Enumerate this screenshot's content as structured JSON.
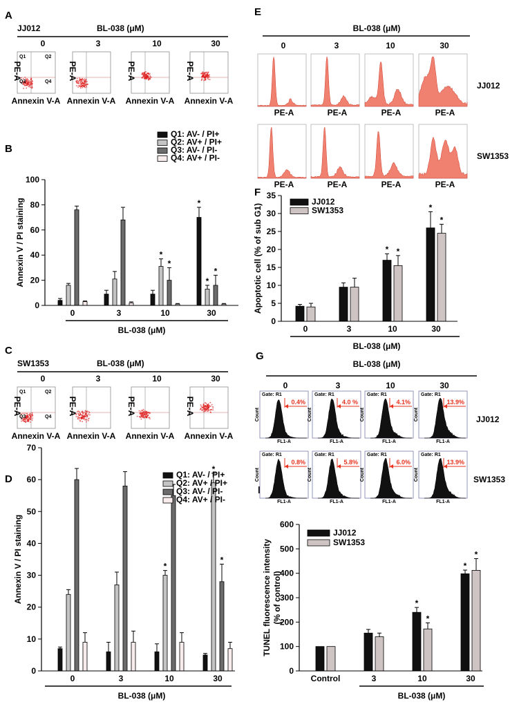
{
  "colors": {
    "q1": "#111111",
    "q2": "#c4c4c4",
    "q3": "#6b6b6b",
    "q4": "#f8ecec",
    "jj": "#101010",
    "sw": "#cfc4c4",
    "hist": "#f08070",
    "flow": "#e02020",
    "red": "#e8321e",
    "panel": "#7b7bb0"
  },
  "conc": [
    "0",
    "3",
    "10",
    "30"
  ],
  "conc_unit": "BL-038 (μM)",
  "scatter_xlabel": "Annexin V-A",
  "scatter_ylabel": "PE-A",
  "quadrants": [
    "Q1",
    "Q2",
    "Q3",
    "Q4"
  ],
  "panelA": {
    "label": "A",
    "cell": "JJ012"
  },
  "panelC": {
    "label": "C",
    "cell": "SW1353"
  },
  "panelE": {
    "label": "E",
    "rows": [
      "JJ012",
      "SW1353"
    ],
    "xlabel": "PE-A"
  },
  "panelG": {
    "label": "G",
    "rows": [
      "JJ012",
      "SW1353"
    ],
    "gate": "Gate: R1",
    "xaxis": "FL1-A",
    "yaxis": "Count",
    "pcts": [
      [
        "0.4%",
        "4.0 %",
        "4.1%",
        "13.9%"
      ],
      [
        "0.8%",
        "5.8%",
        "6.0%",
        "13.9%"
      ]
    ]
  },
  "chart_data": [
    {
      "id": "B",
      "label": "B",
      "type": "bar",
      "ylabel": "Annexin V / PI staining",
      "xlabel": "BL-038 (μM)",
      "ylim": [
        0,
        100
      ],
      "yticks": [
        0,
        20,
        40,
        60,
        80,
        100
      ],
      "categories": [
        "0",
        "3",
        "10",
        "30"
      ],
      "series": [
        {
          "name": "Q1: AV- / PI+",
          "values": [
            4,
            9,
            9,
            70
          ],
          "err": [
            1.5,
            3,
            3,
            8
          ],
          "star": [
            0,
            0,
            0,
            1
          ]
        },
        {
          "name": "Q2: AV+ / PI+",
          "values": [
            16,
            21,
            31,
            13
          ],
          "err": [
            1.5,
            6,
            6,
            3
          ],
          "star": [
            0,
            0,
            1,
            1
          ]
        },
        {
          "name": "Q3: AV- / PI-",
          "values": [
            76,
            68,
            20,
            16
          ],
          "err": [
            3,
            10,
            10,
            8
          ],
          "star": [
            0,
            0,
            1,
            1
          ]
        },
        {
          "name": "Q4: AV+ / PI-",
          "values": [
            3,
            2,
            1,
            1
          ],
          "err": [
            0.5,
            0.8,
            0.5,
            0.5
          ],
          "star": [
            0,
            0,
            0,
            0
          ]
        }
      ]
    },
    {
      "id": "D",
      "label": "D",
      "type": "bar",
      "ylabel": "Annexin V / PI staining",
      "xlabel": "BL-038 (μM)",
      "ylim": [
        0,
        70
      ],
      "yticks": [
        0,
        10,
        20,
        30,
        40,
        50,
        60,
        70
      ],
      "categories": [
        "0",
        "3",
        "10",
        "30"
      ],
      "series": [
        {
          "name": "Q1: AV- / PI+",
          "values": [
            7,
            6,
            6,
            5
          ],
          "err": [
            0.5,
            3,
            2.5,
            0.5
          ],
          "star": [
            0,
            0,
            0,
            0
          ]
        },
        {
          "name": "Q2: AV+ / PI+",
          "values": [
            24,
            27,
            30,
            59
          ],
          "err": [
            1.5,
            4,
            1.5,
            3
          ],
          "star": [
            0,
            0,
            1,
            1
          ]
        },
        {
          "name": "Q3: AV- / PI-",
          "values": [
            60,
            58,
            55,
            28
          ],
          "err": [
            3.5,
            4.5,
            3.5,
            5.5
          ],
          "star": [
            0,
            0,
            0,
            1
          ]
        },
        {
          "name": "Q4: AV+ / PI-",
          "values": [
            9,
            9,
            9,
            7
          ],
          "err": [
            3,
            3.5,
            3,
            2
          ],
          "star": [
            0,
            0,
            0,
            0
          ]
        }
      ]
    },
    {
      "id": "F",
      "label": "F",
      "type": "bar",
      "ylabel": "Apoptotic cell (% of sub G1)",
      "xlabel": "BL-038 (μM)",
      "ylim": [
        0,
        35
      ],
      "yticks": [
        0,
        5,
        10,
        15,
        20,
        25,
        30,
        35
      ],
      "categories": [
        "0",
        "3",
        "10",
        "30"
      ],
      "series": [
        {
          "name": "JJ012",
          "values": [
            4.2,
            9.5,
            17,
            26
          ],
          "err": [
            0.5,
            1.2,
            1.8,
            4.5
          ],
          "star": [
            0,
            0,
            1,
            1
          ]
        },
        {
          "name": "SW1353",
          "values": [
            4,
            9.5,
            15.5,
            24.5
          ],
          "err": [
            1,
            2.5,
            2.8,
            2.5
          ],
          "star": [
            0,
            0,
            1,
            1
          ]
        }
      ]
    },
    {
      "id": "H",
      "label": "H",
      "type": "bar",
      "ylabel": "TUNEL fluorescence intensity",
      "ylabel2": "(% of control)",
      "xlabel": "BL-038 (μM)",
      "ylim": [
        0,
        600
      ],
      "yticks": [
        0,
        100,
        200,
        300,
        400,
        500,
        600
      ],
      "categories": [
        "Control",
        "3",
        "10",
        "30"
      ],
      "series": [
        {
          "name": "JJ012",
          "values": [
            100,
            155,
            240,
            398
          ],
          "err": [
            0,
            15,
            20,
            15
          ],
          "star": [
            0,
            0,
            1,
            1
          ]
        },
        {
          "name": "SW1353",
          "values": [
            100,
            140,
            172,
            412
          ],
          "err": [
            0,
            15,
            25,
            48
          ],
          "star": [
            0,
            0,
            1,
            1
          ]
        }
      ]
    }
  ]
}
